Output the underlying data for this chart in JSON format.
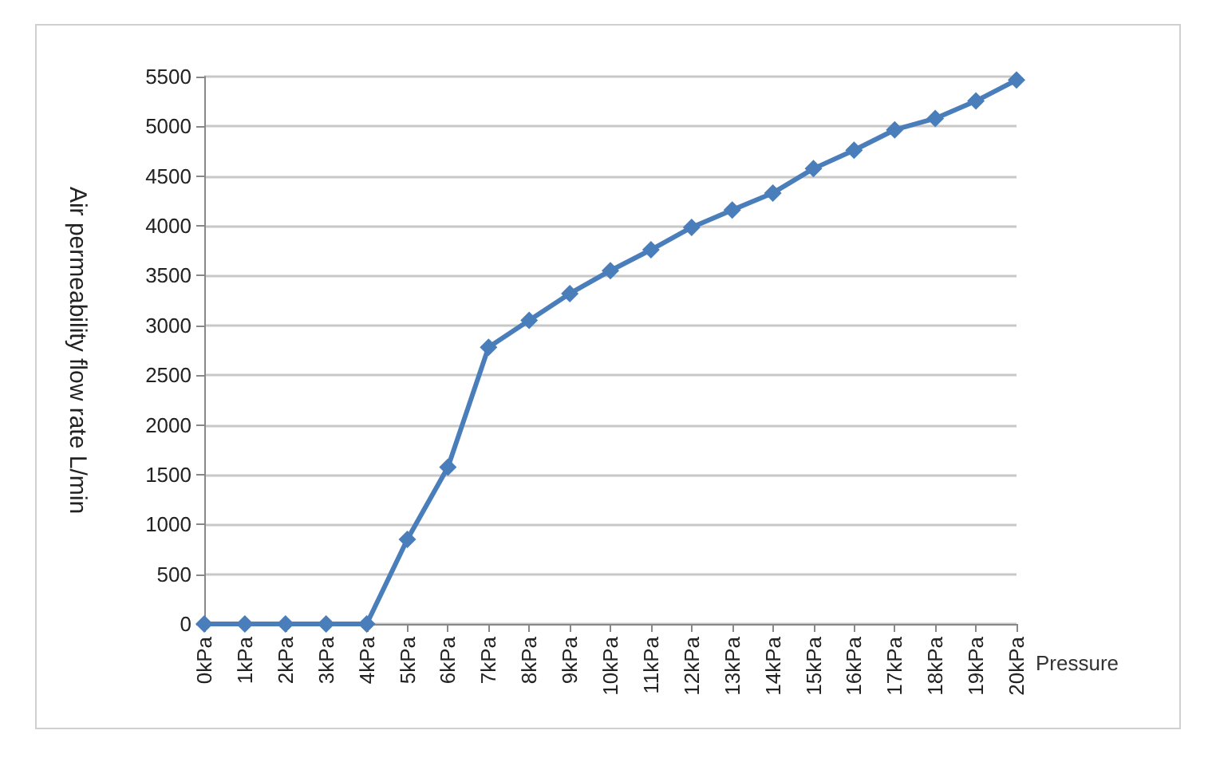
{
  "chart_data": {
    "type": "line",
    "ylabel": "Air permeability flow rate L/min",
    "xlabel": "Pressure",
    "categories": [
      "0kPa",
      "1kPa",
      "2kPa",
      "3kPa",
      "4kPa",
      "5kPa",
      "6kPa",
      "7kPa",
      "8kPa",
      "9kPa",
      "10kPa",
      "11kPa",
      "12kPa",
      "13kPa",
      "14kPa",
      "15kPa",
      "16kPa",
      "17kPa",
      "18kPa",
      "19kPa",
      "20kPa"
    ],
    "series": [
      {
        "color": "#4a7ebb",
        "values": [
          0,
          0,
          0,
          0,
          0,
          850,
          1575,
          2780,
          3050,
          3320,
          3550,
          3760,
          3985,
          4160,
          4330,
          4575,
          4760,
          4965,
          5080,
          5255,
          5465
        ]
      }
    ],
    "ylim": [
      0,
      5500
    ],
    "yticks": [
      0,
      500,
      1000,
      1500,
      2000,
      2500,
      3000,
      3500,
      4000,
      4500,
      5000,
      5500
    ],
    "grid": "y",
    "marker": "diamond",
    "line_style": "solid"
  }
}
